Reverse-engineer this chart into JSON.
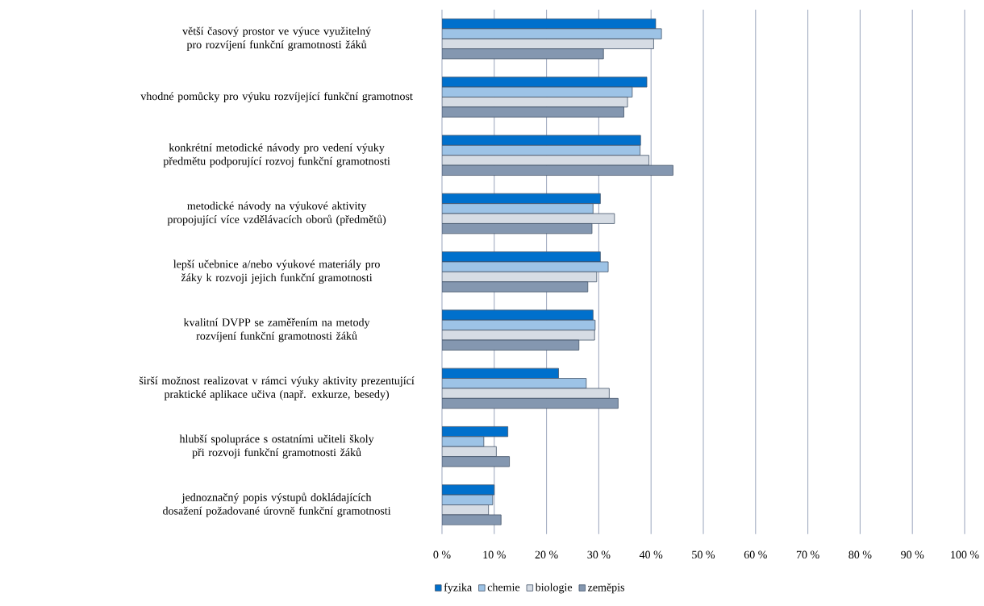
{
  "chart_data": {
    "type": "bar",
    "orientation": "horizontal",
    "categories": [
      "větší časový prostor ve výuce využitelný pro rozvíjení funkční gramotnosti žáků",
      "vhodné pomůcky pro výuku rozvíjející funkční gramotnost",
      "konkrétní metodické návody pro vedení výuky předmětu podporující rozvoj funkční gramotnosti",
      "metodické návody na výukové aktivity propojující více vzdělávacích oborů (předmětů)",
      "lepší učebnice a/nebo výukové materiály pro žáky k rozvoji jejich funkční gramotnosti",
      "kvalitní DVPP se zaměřením na metody rozvíjení funkční gramotnosti žáků",
      "širší možnost realizovat v rámci výuky aktivity prezentující praktické aplikace učiva (např. exkurze, besedy)",
      "hlubší spolupráce s ostatními učiteli školy při rozvoji funkční gramotnosti žáků",
      "jednoznačný popis výstupů dokládajících dosažení požadované úrovně funkční gramotnosti"
    ],
    "series": [
      {
        "name": "fyzika",
        "color": "#0070cc",
        "values": [
          40.9,
          39.2,
          38.0,
          30.3,
          30.3,
          28.9,
          22.3,
          12.6,
          10.0
        ]
      },
      {
        "name": "chemie",
        "color": "#9dc3e6",
        "values": [
          42.0,
          36.4,
          37.9,
          28.9,
          31.8,
          29.3,
          27.6,
          8.0,
          9.7
        ]
      },
      {
        "name": "biologie",
        "color": "#d6dce4",
        "values": [
          40.5,
          35.5,
          39.6,
          33.0,
          29.6,
          29.2,
          32.0,
          10.4,
          8.9
        ]
      },
      {
        "name": "zeměpis",
        "color": "#8497b0",
        "values": [
          30.9,
          34.8,
          44.2,
          28.7,
          27.9,
          26.2,
          33.7,
          12.9,
          11.3
        ]
      }
    ],
    "xlim": [
      0,
      100
    ],
    "xticks": [
      {
        "value": 0,
        "label": "0 %"
      },
      {
        "value": 10,
        "label": "10 %"
      },
      {
        "value": 20,
        "label": "20 %"
      },
      {
        "value": 30,
        "label": "30 %"
      },
      {
        "value": 40,
        "label": "40 %"
      },
      {
        "value": 50,
        "label": "50 %"
      },
      {
        "value": 60,
        "label": "60 %"
      },
      {
        "value": 70,
        "label": "70 %"
      },
      {
        "value": 80,
        "label": "80 %"
      },
      {
        "value": 90,
        "label": "90 %"
      },
      {
        "value": 100,
        "label": "100 %"
      }
    ],
    "grid": "x",
    "legend": "bottom"
  }
}
